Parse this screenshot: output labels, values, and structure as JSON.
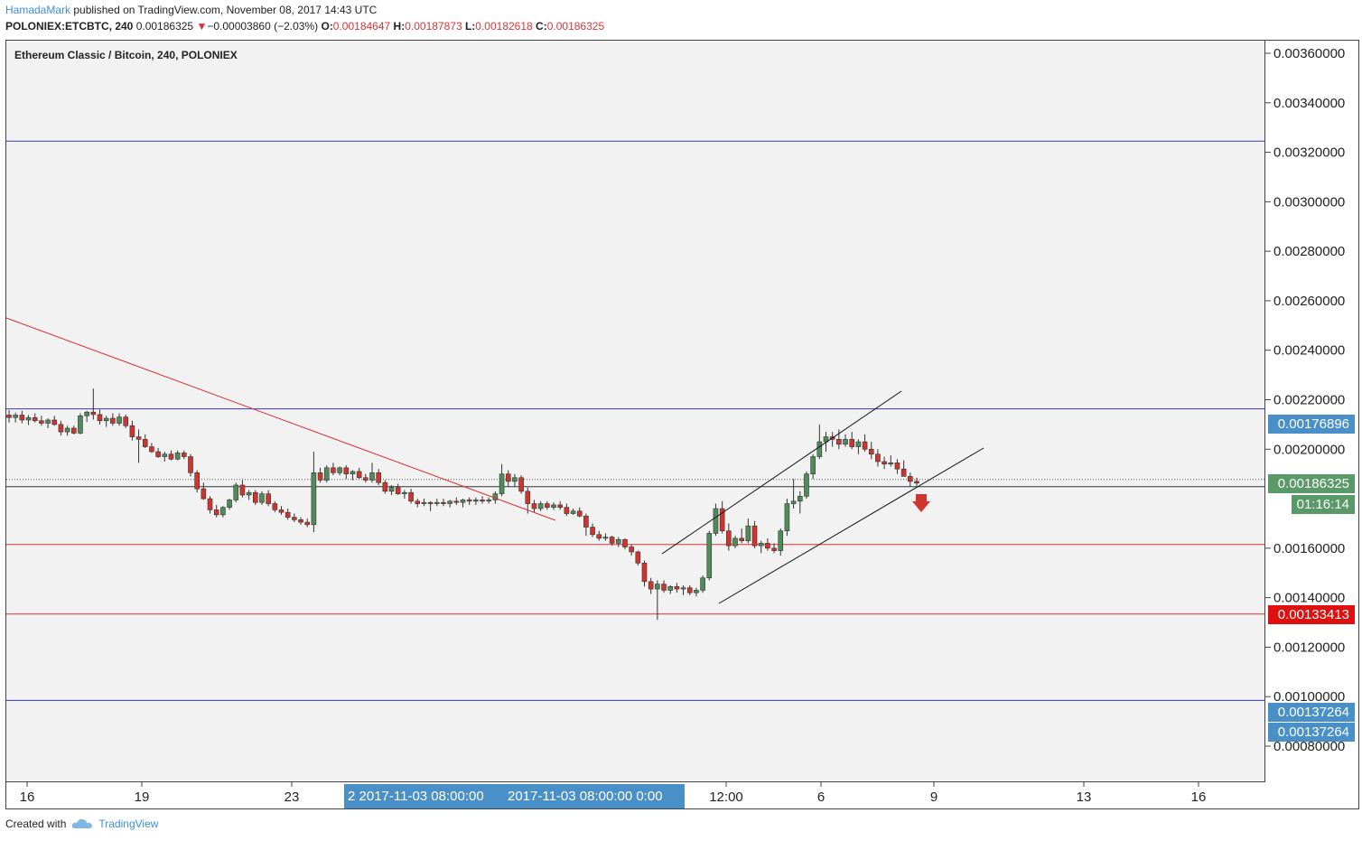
{
  "header": {
    "author": "HamadaMark",
    "published": " published on TradingView.com, November 08, 2017 14:43 UTC",
    "symbol": "POLONIEX:ETCBTC, 240",
    "last": "0.00186325",
    "change": "−0.00003860 (−2.03%)",
    "o_label": "O:",
    "o_value": "0.00184647",
    "h_label": "H:",
    "h_value": "0.00187873",
    "l_label": "L:",
    "l_value": "0.00182618",
    "c_label": "C:",
    "c_value": "0.00186325"
  },
  "chart_title": "Ethereum Classic / Bitcoin, 240, POLONIEX",
  "price_tags": {
    "upper": "0.00176896",
    "current": "0.00186325",
    "countdown": "01:16:14",
    "support": "0.00133413",
    "lower1": "0.00137264",
    "lower2": "0.00137264"
  },
  "time_tags": {
    "left": "2 2017-11-03 08:00:00",
    "right": "2017-11-03 08:00:00",
    "right_tail": "0:00"
  },
  "footer": {
    "created_with": "Created with",
    "brand": "TradingView"
  },
  "colors": {
    "up": "#4f8c5a",
    "down": "#d0342c",
    "blue_line": "#3a3aa8",
    "red_line": "#e03030",
    "tag_blue": "#4a90c8",
    "tag_green": "#5a9a68",
    "tag_red": "#e01010"
  },
  "chart_data": {
    "type": "candlestick",
    "symbol": "ETCBTC",
    "interval": "240",
    "yticks": [
      "0.00360000",
      "0.00340000",
      "0.00320000",
      "0.00300000",
      "0.00280000",
      "0.00260000",
      "0.00240000",
      "0.00220000",
      "0.00200000",
      "0.00160000",
      "0.00140000",
      "0.00120000",
      "0.00100000",
      "0.00080000"
    ],
    "xticks": [
      "16",
      "19",
      "23",
      "12:00",
      "6",
      "9",
      "13",
      "16"
    ],
    "hlines": [
      {
        "price": 0.003245,
        "color": "blue"
      },
      {
        "price": 0.002163,
        "color": "blue"
      },
      {
        "price": 0.001615,
        "color": "red"
      },
      {
        "price": 0.001334,
        "color": "red"
      },
      {
        "price": 0.000985,
        "color": "blue"
      }
    ],
    "trendlines": [
      {
        "from": [
          "Oct 13",
          0.002535
        ],
        "to": [
          "Nov 4",
          0.0017
        ],
        "color": "red"
      },
      {
        "from": [
          "Nov 4 18:00",
          0.00157
        ],
        "to": [
          "Nov 9",
          0.00223
        ],
        "color": "black"
      },
      {
        "from": [
          "Nov 5 12:00",
          0.00137
        ],
        "to": [
          "Nov 9 12:00",
          0.00201
        ],
        "color": "black"
      }
    ],
    "candles": [
      [
        0.002138,
        0.002158,
        0.002108,
        0.002128
      ],
      [
        0.002128,
        0.002148,
        0.002108,
        0.002138
      ],
      [
        0.002138,
        0.002155,
        0.002105,
        0.002118
      ],
      [
        0.002118,
        0.002138,
        0.002098,
        0.002128
      ],
      [
        0.002128,
        0.002145,
        0.002108,
        0.002115
      ],
      [
        0.002115,
        0.002135,
        0.002095,
        0.002105
      ],
      [
        0.002105,
        0.002125,
        0.002085,
        0.002118
      ],
      [
        0.002118,
        0.002135,
        0.002095,
        0.0021
      ],
      [
        0.0021,
        0.002115,
        0.002055,
        0.00207
      ],
      [
        0.00207,
        0.002095,
        0.002055,
        0.002085
      ],
      [
        0.002085,
        0.002095,
        0.00206,
        0.002065
      ],
      [
        0.002065,
        0.002145,
        0.00206,
        0.002135
      ],
      [
        0.002135,
        0.002155,
        0.00211,
        0.00215
      ],
      [
        0.00215,
        0.002245,
        0.00212,
        0.00214
      ],
      [
        0.00214,
        0.00216,
        0.0021,
        0.002115
      ],
      [
        0.002115,
        0.002135,
        0.00209,
        0.002125
      ],
      [
        0.002125,
        0.002145,
        0.002095,
        0.002105
      ],
      [
        0.002105,
        0.002145,
        0.002095,
        0.00213
      ],
      [
        0.00213,
        0.00214,
        0.002085,
        0.002095
      ],
      [
        0.002095,
        0.002115,
        0.002035,
        0.00205
      ],
      [
        0.00205,
        0.00208,
        0.001945,
        0.00204
      ],
      [
        0.00204,
        0.00206,
        0.002005,
        0.00201
      ],
      [
        0.00201,
        0.002025,
        0.001985,
        0.00199
      ],
      [
        0.00199,
        0.002005,
        0.001965,
        0.00197
      ],
      [
        0.00197,
        0.00199,
        0.00195,
        0.00198
      ],
      [
        0.00198,
        0.001995,
        0.001955,
        0.00196
      ],
      [
        0.00196,
        0.001995,
        0.001955,
        0.001985
      ],
      [
        0.001985,
        0.001995,
        0.00196,
        0.00197
      ],
      [
        0.00197,
        0.00198,
        0.00189,
        0.001905
      ],
      [
        0.001905,
        0.001915,
        0.001825,
        0.00184
      ],
      [
        0.00184,
        0.001865,
        0.001795,
        0.0018
      ],
      [
        0.0018,
        0.00181,
        0.00174,
        0.001755
      ],
      [
        0.001755,
        0.001775,
        0.001725,
        0.001735
      ],
      [
        0.001735,
        0.00177,
        0.001725,
        0.001765
      ],
      [
        0.001765,
        0.0018,
        0.001755,
        0.001795
      ],
      [
        0.001795,
        0.001865,
        0.001785,
        0.001855
      ],
      [
        0.001855,
        0.001875,
        0.001805,
        0.001815
      ],
      [
        0.001815,
        0.001835,
        0.001795,
        0.001825
      ],
      [
        0.001825,
        0.001835,
        0.001775,
        0.001785
      ],
      [
        0.001785,
        0.00183,
        0.001775,
        0.00182
      ],
      [
        0.00182,
        0.001835,
        0.00177,
        0.00178
      ],
      [
        0.00178,
        0.00179,
        0.001745,
        0.001755
      ],
      [
        0.001755,
        0.00177,
        0.001735,
        0.001745
      ],
      [
        0.001745,
        0.00176,
        0.001715,
        0.001725
      ],
      [
        0.001725,
        0.00174,
        0.001705,
        0.001715
      ],
      [
        0.001715,
        0.001725,
        0.001695,
        0.001705
      ],
      [
        0.001705,
        0.00172,
        0.001685,
        0.001695
      ],
      [
        0.001695,
        0.00199,
        0.001665,
        0.001905
      ],
      [
        0.001905,
        0.001925,
        0.001865,
        0.001875
      ],
      [
        0.001875,
        0.001935,
        0.001865,
        0.001925
      ],
      [
        0.001925,
        0.001945,
        0.001895,
        0.001905
      ],
      [
        0.001905,
        0.00193,
        0.001895,
        0.001925
      ],
      [
        0.001925,
        0.001935,
        0.00188,
        0.0019
      ],
      [
        0.0019,
        0.001915,
        0.001875,
        0.00191
      ],
      [
        0.00191,
        0.001925,
        0.00188,
        0.001885
      ],
      [
        0.001885,
        0.0019,
        0.001865,
        0.001875
      ],
      [
        0.001875,
        0.001945,
        0.001865,
        0.001905
      ],
      [
        0.001905,
        0.00192,
        0.001855,
        0.001865
      ],
      [
        0.001865,
        0.001875,
        0.00182,
        0.00183
      ],
      [
        0.00183,
        0.001855,
        0.001815,
        0.001845
      ],
      [
        0.001845,
        0.00186,
        0.001815,
        0.00182
      ],
      [
        0.00182,
        0.001835,
        0.0018,
        0.001825
      ],
      [
        0.001825,
        0.00184,
        0.00178,
        0.00179
      ],
      [
        0.00179,
        0.0018,
        0.001765,
        0.00178
      ],
      [
        0.00178,
        0.0018,
        0.00177,
        0.001785
      ],
      [
        0.001785,
        0.00179,
        0.00175,
        0.00178
      ],
      [
        0.00178,
        0.0018,
        0.00177,
        0.001785
      ],
      [
        0.001785,
        0.0018,
        0.00177,
        0.00178
      ],
      [
        0.00178,
        0.001795,
        0.001765,
        0.00179
      ],
      [
        0.00179,
        0.001805,
        0.001775,
        0.001785
      ],
      [
        0.001785,
        0.0018,
        0.001765,
        0.001795
      ],
      [
        0.001795,
        0.001805,
        0.001775,
        0.00179
      ],
      [
        0.00179,
        0.001805,
        0.001775,
        0.001795
      ],
      [
        0.001795,
        0.00181,
        0.00178,
        0.00179
      ],
      [
        0.00179,
        0.001805,
        0.00178,
        0.001795
      ],
      [
        0.001795,
        0.00183,
        0.00178,
        0.00182
      ],
      [
        0.00182,
        0.00194,
        0.00181,
        0.0019
      ],
      [
        0.0019,
        0.001915,
        0.00185,
        0.00187
      ],
      [
        0.00187,
        0.0019,
        0.00185,
        0.001885
      ],
      [
        0.001885,
        0.001895,
        0.00182,
        0.00183
      ],
      [
        0.00183,
        0.001845,
        0.00174,
        0.00178
      ],
      [
        0.00178,
        0.001795,
        0.001745,
        0.00176
      ],
      [
        0.00176,
        0.00179,
        0.00175,
        0.00178
      ],
      [
        0.00178,
        0.00179,
        0.001755,
        0.001765
      ],
      [
        0.001765,
        0.001785,
        0.001755,
        0.001775
      ],
      [
        0.001775,
        0.00179,
        0.001755,
        0.001765
      ],
      [
        0.001765,
        0.00178,
        0.00173,
        0.00174
      ],
      [
        0.00174,
        0.00176,
        0.001735,
        0.00175
      ],
      [
        0.00175,
        0.001765,
        0.001725,
        0.00173
      ],
      [
        0.00173,
        0.00174,
        0.00165,
        0.001685
      ],
      [
        0.001685,
        0.0017,
        0.001645,
        0.001655
      ],
      [
        0.001655,
        0.00167,
        0.00163,
        0.00164
      ],
      [
        0.00164,
        0.00166,
        0.00163,
        0.001645
      ],
      [
        0.001645,
        0.00165,
        0.00161,
        0.00162
      ],
      [
        0.00162,
        0.001645,
        0.001605,
        0.001635
      ],
      [
        0.001635,
        0.00164,
        0.001595,
        0.001605
      ],
      [
        0.001605,
        0.001615,
        0.00157,
        0.001585
      ],
      [
        0.001585,
        0.00159,
        0.00153,
        0.00154
      ],
      [
        0.00154,
        0.00155,
        0.001445,
        0.001465
      ],
      [
        0.001465,
        0.00148,
        0.001415,
        0.001435
      ],
      [
        0.001435,
        0.00147,
        0.00131,
        0.001455
      ],
      [
        0.001455,
        0.00147,
        0.00142,
        0.00143
      ],
      [
        0.00143,
        0.00145,
        0.001415,
        0.001445
      ],
      [
        0.001445,
        0.00146,
        0.00142,
        0.001435
      ],
      [
        0.001435,
        0.00145,
        0.00141,
        0.00144
      ],
      [
        0.00144,
        0.00145,
        0.00141,
        0.00142
      ],
      [
        0.00142,
        0.00144,
        0.001405,
        0.00143
      ],
      [
        0.00143,
        0.00149,
        0.00142,
        0.00148
      ],
      [
        0.00148,
        0.00167,
        0.00147,
        0.00166
      ],
      [
        0.00166,
        0.00178,
        0.00165,
        0.00176
      ],
      [
        0.00176,
        0.00179,
        0.00166,
        0.00167
      ],
      [
        0.00167,
        0.0017,
        0.00159,
        0.00161
      ],
      [
        0.00161,
        0.00165,
        0.0016,
        0.00164
      ],
      [
        0.00164,
        0.00168,
        0.00162,
        0.00163
      ],
      [
        0.00163,
        0.00172,
        0.00162,
        0.00169
      ],
      [
        0.00169,
        0.00171,
        0.0016,
        0.00161
      ],
      [
        0.00161,
        0.00163,
        0.00158,
        0.00162
      ],
      [
        0.00162,
        0.00164,
        0.00159,
        0.0016
      ],
      [
        0.0016,
        0.00162,
        0.00158,
        0.00159
      ],
      [
        0.00159,
        0.00168,
        0.00157,
        0.00167
      ],
      [
        0.00167,
        0.0018,
        0.00165,
        0.00178
      ],
      [
        0.00178,
        0.00188,
        0.00176,
        0.00179
      ],
      [
        0.00179,
        0.00183,
        0.00174,
        0.00181
      ],
      [
        0.00181,
        0.00191,
        0.0018,
        0.0019
      ],
      [
        0.0019,
        0.00198,
        0.00188,
        0.00197
      ],
      [
        0.00197,
        0.0021,
        0.00196,
        0.00203
      ],
      [
        0.00203,
        0.00207,
        0.00199,
        0.00205
      ],
      [
        0.00205,
        0.00207,
        0.00201,
        0.00204
      ],
      [
        0.00204,
        0.00208,
        0.002,
        0.00202
      ],
      [
        0.00202,
        0.00206,
        0.00201,
        0.00204
      ],
      [
        0.00204,
        0.00207,
        0.002,
        0.00201
      ],
      [
        0.00201,
        0.00204,
        0.00198,
        0.00203
      ],
      [
        0.00203,
        0.00206,
        0.00199,
        0.002
      ],
      [
        0.002,
        0.00203,
        0.00196,
        0.00198
      ],
      [
        0.00198,
        0.002,
        0.00193,
        0.00195
      ],
      [
        0.00195,
        0.00197,
        0.00192,
        0.00194
      ],
      [
        0.00194,
        0.001975,
        0.00193,
        0.001945
      ],
      [
        0.001945,
        0.00196,
        0.0019,
        0.00192
      ],
      [
        0.00192,
        0.001955,
        0.001895,
        0.00189
      ],
      [
        0.00189,
        0.001905,
        0.00185,
        0.00187
      ],
      [
        0.00187,
        0.001885,
        0.001852,
        0.001863
      ]
    ]
  }
}
